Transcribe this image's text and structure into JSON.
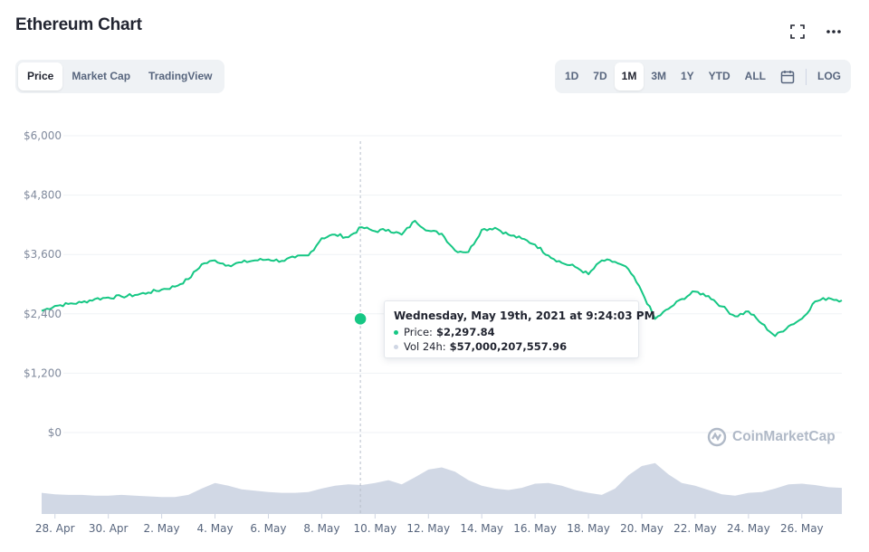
{
  "header": {
    "title": "Ethereum Chart"
  },
  "icons": {
    "fullscreen": "fullscreen-icon",
    "more": "more-icon",
    "calendar": "calendar-icon",
    "logo": "coinmarketcap-logo-icon"
  },
  "view_tabs": [
    {
      "label": "Price",
      "active": true
    },
    {
      "label": "Market Cap",
      "active": false
    },
    {
      "label": "TradingView",
      "active": false
    }
  ],
  "range_tabs": [
    {
      "label": "1D",
      "active": false
    },
    {
      "label": "7D",
      "active": false
    },
    {
      "label": "1M",
      "active": true
    },
    {
      "label": "3M",
      "active": false
    },
    {
      "label": "1Y",
      "active": false
    },
    {
      "label": "YTD",
      "active": false
    },
    {
      "label": "ALL",
      "active": false
    }
  ],
  "log_label": "LOG",
  "tooltip": {
    "date": "Wednesday, May 19th, 2021 at 9:24:03 PM",
    "price_label": "Price:",
    "price_value": "$2,297.84",
    "vol_label": "Vol 24h:",
    "vol_value": "$57,000,207,557.96"
  },
  "watermark": "CoinMarketCap",
  "colors": {
    "price_line": "#16c784",
    "volume": "#cfd6e4",
    "grid": "#eff2f5",
    "axis_text": "#808a9d",
    "crosshair": "#b8bfcb"
  },
  "chart_data": {
    "type": "area",
    "yaxis_ticks": [
      "$6,000",
      "$4,800",
      "$3,600",
      "$2,400",
      "$1,200",
      "$0"
    ],
    "ylim": [
      0,
      6000
    ],
    "xaxis_ticks": [
      "28. Apr",
      "30. Apr",
      "2. May",
      "4. May",
      "6. May",
      "8. May",
      "10. May",
      "12. May",
      "14. May",
      "16. May",
      "18. May",
      "20. May",
      "22. May",
      "24. May",
      "26. May"
    ],
    "x_days": [
      -1,
      0,
      1,
      2,
      3,
      4,
      5,
      6,
      7,
      8,
      9,
      10,
      11,
      12,
      13,
      14,
      15,
      16,
      17,
      18,
      19,
      20,
      21,
      22,
      23,
      24,
      25,
      26,
      27,
      28,
      29,
      30,
      31,
      32,
      33,
      34,
      35,
      36,
      37,
      38,
      39,
      40,
      41,
      42,
      43,
      44,
      45,
      46,
      47,
      48,
      49,
      50,
      51,
      52,
      53,
      54,
      55,
      56,
      57,
      58,
      59
    ],
    "series": [
      {
        "values": [
          2460,
          2560,
          2600,
          2630,
          2700,
          2730,
          2750,
          2780,
          2830,
          2890,
          2950,
          3100,
          3400,
          3480,
          3380,
          3440,
          3480,
          3500,
          3470,
          3540,
          3580,
          3930,
          4000,
          3950,
          4150,
          4070,
          4100,
          4000,
          4280,
          4080,
          4020,
          3680,
          3650,
          4100,
          4140,
          4000,
          3920,
          3800,
          3580,
          3430,
          3350,
          3200,
          3480,
          3450,
          3300,
          2850,
          2297.84,
          2500,
          2700,
          2850,
          2760,
          2550,
          2350,
          2450,
          2200,
          1950,
          2150,
          2300,
          2650,
          2720,
          2670
        ]
      },
      {
        "name": "Vol 24h",
        "values": [
          30,
          28,
          27,
          27,
          26,
          26,
          27,
          26,
          25,
          24,
          24,
          27,
          36,
          44,
          40,
          35,
          33,
          31,
          30,
          30,
          31,
          36,
          40,
          42,
          41,
          44,
          48,
          42,
          52,
          63,
          66,
          60,
          48,
          40,
          36,
          34,
          37,
          43,
          44,
          40,
          34,
          30,
          27,
          36,
          55,
          68,
          72,
          56,
          44,
          40,
          34,
          28,
          26,
          30,
          31,
          36,
          42,
          43,
          41,
          38,
          37
        ]
      }
    ],
    "highlight": {
      "x_day": 22.9,
      "price": 2297.84
    }
  }
}
